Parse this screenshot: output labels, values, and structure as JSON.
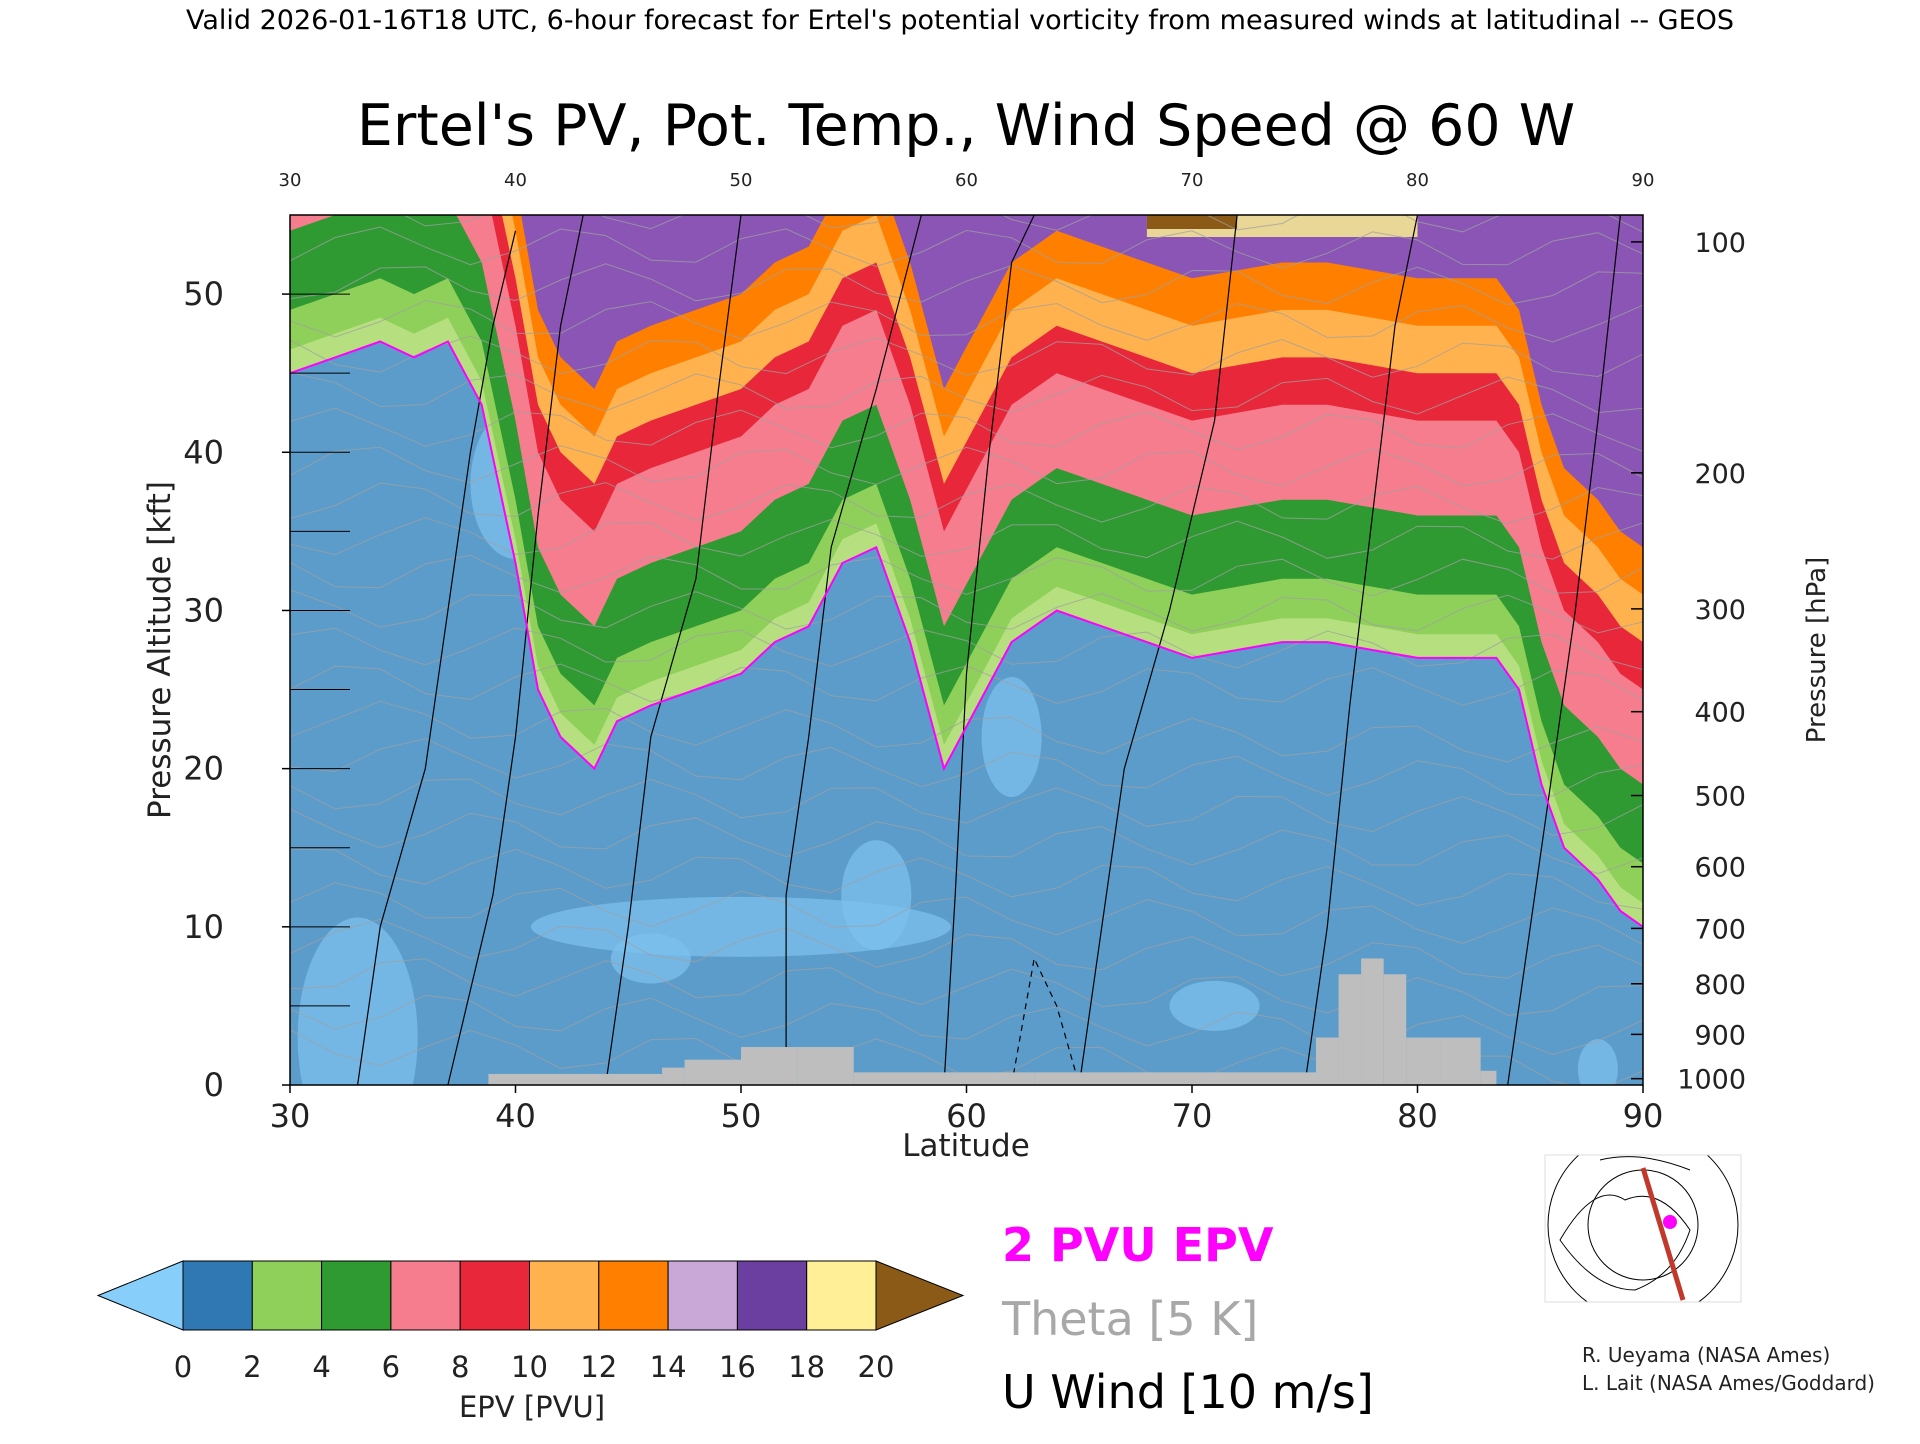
{
  "header": "Valid 2026-01-16T18 UTC, 6-hour forecast for Ertel's potential vorticity from measured winds at latitudinal -- GEOS",
  "chart_data": {
    "type": "heatmap",
    "title": "Ertel's PV, Pot. Temp., Wind Speed @ 60 W",
    "xlabel": "Latitude",
    "ylabel": "Pressure Altitude [kft]",
    "y2label": "Pressure [hPa]",
    "xlim": [
      30,
      90
    ],
    "ylim": [
      0,
      55
    ],
    "x_ticks": [
      "30",
      "40",
      "50",
      "60",
      "70",
      "80",
      "90"
    ],
    "y_ticks": [
      "0",
      "10",
      "20",
      "30",
      "40",
      "50"
    ],
    "pressure_ticks": [
      {
        "label": "100",
        "alt": 53.3
      },
      {
        "label": "200",
        "alt": 38.7
      },
      {
        "label": "300",
        "alt": 30.1
      },
      {
        "label": "400",
        "alt": 23.6
      },
      {
        "label": "500",
        "alt": 18.3
      },
      {
        "label": "600",
        "alt": 13.8
      },
      {
        "label": "700",
        "alt": 9.9
      },
      {
        "label": "800",
        "alt": 6.4
      },
      {
        "label": "900",
        "alt": 3.2
      },
      {
        "label": "1000",
        "alt": 0.4
      }
    ],
    "tropopause_2pvu_kft": [
      {
        "lat": 30,
        "alt": 45
      },
      {
        "lat": 32,
        "alt": 46
      },
      {
        "lat": 34,
        "alt": 47
      },
      {
        "lat": 35.5,
        "alt": 46
      },
      {
        "lat": 37,
        "alt": 47
      },
      {
        "lat": 38.5,
        "alt": 43
      },
      {
        "lat": 40,
        "alt": 33
      },
      {
        "lat": 41,
        "alt": 25
      },
      {
        "lat": 42,
        "alt": 22
      },
      {
        "lat": 43.5,
        "alt": 20
      },
      {
        "lat": 44.5,
        "alt": 23
      },
      {
        "lat": 46,
        "alt": 24
      },
      {
        "lat": 48,
        "alt": 25
      },
      {
        "lat": 50,
        "alt": 26
      },
      {
        "lat": 51.5,
        "alt": 28
      },
      {
        "lat": 53,
        "alt": 29
      },
      {
        "lat": 54.5,
        "alt": 33
      },
      {
        "lat": 56,
        "alt": 34
      },
      {
        "lat": 57.5,
        "alt": 28
      },
      {
        "lat": 59,
        "alt": 20
      },
      {
        "lat": 60.5,
        "alt": 24
      },
      {
        "lat": 62,
        "alt": 28
      },
      {
        "lat": 64,
        "alt": 30
      },
      {
        "lat": 66,
        "alt": 29
      },
      {
        "lat": 68,
        "alt": 28
      },
      {
        "lat": 70,
        "alt": 27
      },
      {
        "lat": 72,
        "alt": 27.5
      },
      {
        "lat": 74,
        "alt": 28
      },
      {
        "lat": 76,
        "alt": 28
      },
      {
        "lat": 78,
        "alt": 27.5
      },
      {
        "lat": 80,
        "alt": 27
      },
      {
        "lat": 82,
        "alt": 27
      },
      {
        "lat": 83.5,
        "alt": 27
      },
      {
        "lat": 84.5,
        "alt": 25
      },
      {
        "lat": 85.5,
        "alt": 19
      },
      {
        "lat": 86.5,
        "alt": 15
      },
      {
        "lat": 88,
        "alt": 13
      },
      {
        "lat": 89,
        "alt": 11
      },
      {
        "lat": 90,
        "alt": 10
      }
    ],
    "stratosphere_bands_kft": [
      {
        "level": 4,
        "lift": 1.5
      },
      {
        "level": 6,
        "lift": 4
      },
      {
        "level": 8,
        "lift": 9
      },
      {
        "level": 10,
        "lift": 15
      },
      {
        "level": 12,
        "lift": 18
      },
      {
        "level": 16,
        "lift": 21
      },
      {
        "level": 20,
        "lift": 24
      }
    ],
    "terrain_kft": [
      {
        "lat0": 38.8,
        "lat1": 46.5,
        "alt": 0.7
      },
      {
        "lat0": 46.5,
        "lat1": 47.5,
        "alt": 1.1
      },
      {
        "lat0": 47.5,
        "lat1": 50,
        "alt": 1.6
      },
      {
        "lat0": 50,
        "lat1": 52.5,
        "alt": 2.4
      },
      {
        "lat0": 52.5,
        "lat1": 55,
        "alt": 2.4
      },
      {
        "lat0": 55,
        "lat1": 63,
        "alt": 0.8
      },
      {
        "lat0": 63,
        "lat1": 75.5,
        "alt": 0.8
      },
      {
        "lat0": 75.5,
        "lat1": 76.5,
        "alt": 3
      },
      {
        "lat0": 76.5,
        "lat1": 77.5,
        "alt": 7
      },
      {
        "lat0": 77.5,
        "lat1": 78.5,
        "alt": 8
      },
      {
        "lat0": 78.5,
        "lat1": 79.5,
        "alt": 7
      },
      {
        "lat0": 79.5,
        "lat1": 81,
        "alt": 3
      },
      {
        "lat0": 81,
        "lat1": 82.8,
        "alt": 3
      },
      {
        "lat0": 82.8,
        "lat1": 83.5,
        "alt": 0.9
      }
    ]
  },
  "colorbar": {
    "label": "EPV [PVU]",
    "ticks": [
      "0",
      "2",
      "4",
      "6",
      "8",
      "10",
      "12",
      "14",
      "16",
      "18",
      "20"
    ],
    "colors": [
      "#2f78b4",
      "#8fd05a",
      "#2f9a32",
      "#f57d8e",
      "#e8273a",
      "#ffb24d",
      "#ff8000",
      "#c9a8d8",
      "#6b3fa0",
      "#ffef96"
    ],
    "under_color": "#87cefa",
    "over_color": "#8b5a17"
  },
  "legend": {
    "pv_label": "2 PVU EPV",
    "theta_label": "Theta [5 K]",
    "wind_label": "U Wind [10 m/s]"
  },
  "credits": {
    "line1": "R. Ueyama (NASA Ames)",
    "line2": "L. Lait (NASA Ames/Goddard)"
  },
  "colors": {
    "pv_contour": "#ff00ff",
    "terrain": "#bebebe",
    "theta": "#a0a0a0",
    "wind": "#000000",
    "section_line": "#c0392b"
  }
}
